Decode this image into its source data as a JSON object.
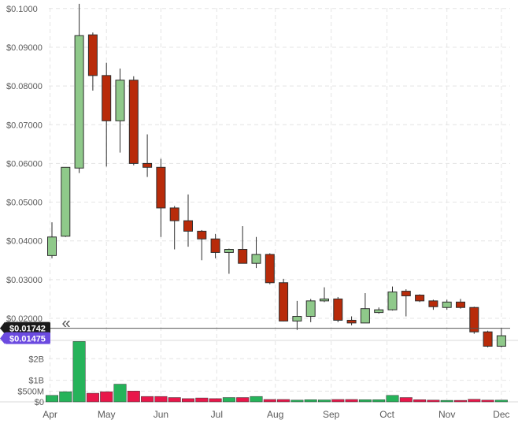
{
  "chart_data": {
    "type": "candlestick",
    "price_axis": {
      "ylim": [
        0.0143,
        0.1022
      ],
      "ticks": [
        {
          "value": 0.02,
          "label": "$0.02000"
        },
        {
          "value": 0.03,
          "label": "$0.03000"
        },
        {
          "value": 0.04,
          "label": "$0.04000"
        },
        {
          "value": 0.05,
          "label": "$0.05000"
        },
        {
          "value": 0.06,
          "label": "$0.06000"
        },
        {
          "value": 0.07,
          "label": "$0.07000"
        },
        {
          "value": 0.08,
          "label": "$0.08000"
        },
        {
          "value": 0.09,
          "label": "$0.09000"
        },
        {
          "value": 0.1,
          "label": "$0.1000"
        }
      ],
      "grid": true,
      "position": "left"
    },
    "volume_axis": {
      "ylim": [
        0,
        2.85
      ],
      "unit": "B",
      "ticks": [
        {
          "value": 0,
          "label": "$0"
        },
        {
          "value": 0.5,
          "label": "$500M"
        },
        {
          "value": 1,
          "label": "$1B"
        },
        {
          "value": 2,
          "label": "$2B"
        }
      ],
      "grid": true
    },
    "x_axis": {
      "months": [
        {
          "label": "Apr",
          "index": -0.14
        },
        {
          "label": "May",
          "index": 4.0
        },
        {
          "label": "Jun",
          "index": 8.0
        },
        {
          "label": "Jul",
          "index": 12.1
        },
        {
          "label": "Aug",
          "index": 16.4
        },
        {
          "label": "Sep",
          "index": 20.5
        },
        {
          "label": "Oct",
          "index": 24.6
        },
        {
          "label": "Nov",
          "index": 29.0
        },
        {
          "label": "Dec",
          "index": 33.0
        }
      ]
    },
    "candles": [
      {
        "open": 0.0362,
        "high": 0.0448,
        "low": 0.0355,
        "close": 0.041
      },
      {
        "open": 0.0412,
        "high": 0.059,
        "low": 0.041,
        "close": 0.059
      },
      {
        "open": 0.0588,
        "high": 0.1012,
        "low": 0.0575,
        "close": 0.093
      },
      {
        "open": 0.0932,
        "high": 0.0938,
        "low": 0.0788,
        "close": 0.0827
      },
      {
        "open": 0.0827,
        "high": 0.086,
        "low": 0.0592,
        "close": 0.071
      },
      {
        "open": 0.071,
        "high": 0.0845,
        "low": 0.0628,
        "close": 0.0815
      },
      {
        "open": 0.0815,
        "high": 0.0825,
        "low": 0.0595,
        "close": 0.06
      },
      {
        "open": 0.06,
        "high": 0.0675,
        "low": 0.0565,
        "close": 0.059
      },
      {
        "open": 0.059,
        "high": 0.0612,
        "low": 0.041,
        "close": 0.0485
      },
      {
        "open": 0.0485,
        "high": 0.049,
        "low": 0.0378,
        "close": 0.0452
      },
      {
        "open": 0.0452,
        "high": 0.052,
        "low": 0.0385,
        "close": 0.0425
      },
      {
        "open": 0.0425,
        "high": 0.0428,
        "low": 0.035,
        "close": 0.0405
      },
      {
        "open": 0.0405,
        "high": 0.0418,
        "low": 0.0355,
        "close": 0.037
      },
      {
        "open": 0.037,
        "high": 0.038,
        "low": 0.0315,
        "close": 0.0378
      },
      {
        "open": 0.0378,
        "high": 0.0438,
        "low": 0.0342,
        "close": 0.0342
      },
      {
        "open": 0.0342,
        "high": 0.041,
        "low": 0.033,
        "close": 0.0365
      },
      {
        "open": 0.0365,
        "high": 0.0368,
        "low": 0.0288,
        "close": 0.0292
      },
      {
        "open": 0.0292,
        "high": 0.0302,
        "low": 0.0192,
        "close": 0.0193
      },
      {
        "open": 0.0193,
        "high": 0.0245,
        "low": 0.017,
        "close": 0.0205
      },
      {
        "open": 0.0205,
        "high": 0.025,
        "low": 0.019,
        "close": 0.0245
      },
      {
        "open": 0.0245,
        "high": 0.028,
        "low": 0.0242,
        "close": 0.025
      },
      {
        "open": 0.025,
        "high": 0.0255,
        "low": 0.019,
        "close": 0.0195
      },
      {
        "open": 0.0195,
        "high": 0.0205,
        "low": 0.0182,
        "close": 0.0188
      },
      {
        "open": 0.0188,
        "high": 0.0265,
        "low": 0.0188,
        "close": 0.0225
      },
      {
        "open": 0.0215,
        "high": 0.0228,
        "low": 0.0212,
        "close": 0.0222
      },
      {
        "open": 0.0222,
        "high": 0.0282,
        "low": 0.022,
        "close": 0.0268
      },
      {
        "open": 0.027,
        "high": 0.0275,
        "low": 0.0205,
        "close": 0.0258
      },
      {
        "open": 0.026,
        "high": 0.0262,
        "low": 0.0242,
        "close": 0.0245
      },
      {
        "open": 0.0245,
        "high": 0.0248,
        "low": 0.0222,
        "close": 0.023
      },
      {
        "open": 0.0228,
        "high": 0.0248,
        "low": 0.0222,
        "close": 0.0242
      },
      {
        "open": 0.0242,
        "high": 0.025,
        "low": 0.0225,
        "close": 0.0228
      },
      {
        "open": 0.0228,
        "high": 0.023,
        "low": 0.016,
        "close": 0.0165
      },
      {
        "open": 0.0165,
        "high": 0.0168,
        "low": 0.0125,
        "close": 0.0128
      },
      {
        "open": 0.0128,
        "high": 0.0175,
        "low": 0.0125,
        "close": 0.0155
      }
    ],
    "volumes": [
      0.3,
      0.47,
      2.8,
      0.4,
      0.47,
      0.82,
      0.5,
      0.25,
      0.25,
      0.2,
      0.15,
      0.18,
      0.15,
      0.2,
      0.2,
      0.25,
      0.11,
      0.11,
      0.08,
      0.1,
      0.09,
      0.11,
      0.11,
      0.1,
      0.1,
      0.3,
      0.2,
      0.1,
      0.08,
      0.07,
      0.07,
      0.12,
      0.08,
      0.08
    ],
    "current_price": {
      "value": 0.01742,
      "label": "$0.01742"
    },
    "crosshair_price": {
      "value": 0.01475,
      "label": "$0.01475"
    },
    "colors": {
      "up_fill": "#8fc98a",
      "down_fill": "#b82b0a",
      "candle_outline": "#2e2e2e",
      "volume_up": "#26b35a",
      "volume_down": "#e8174a",
      "grid": "#e4e4e4",
      "axis_text": "#5a5a5a",
      "current_price_tag": "#1a1a1a",
      "crosshair_tag": "#6b4ae0"
    }
  },
  "controls": {
    "collapse_icon": "double-chevron-left-icon",
    "collapse_glyph": "«"
  }
}
